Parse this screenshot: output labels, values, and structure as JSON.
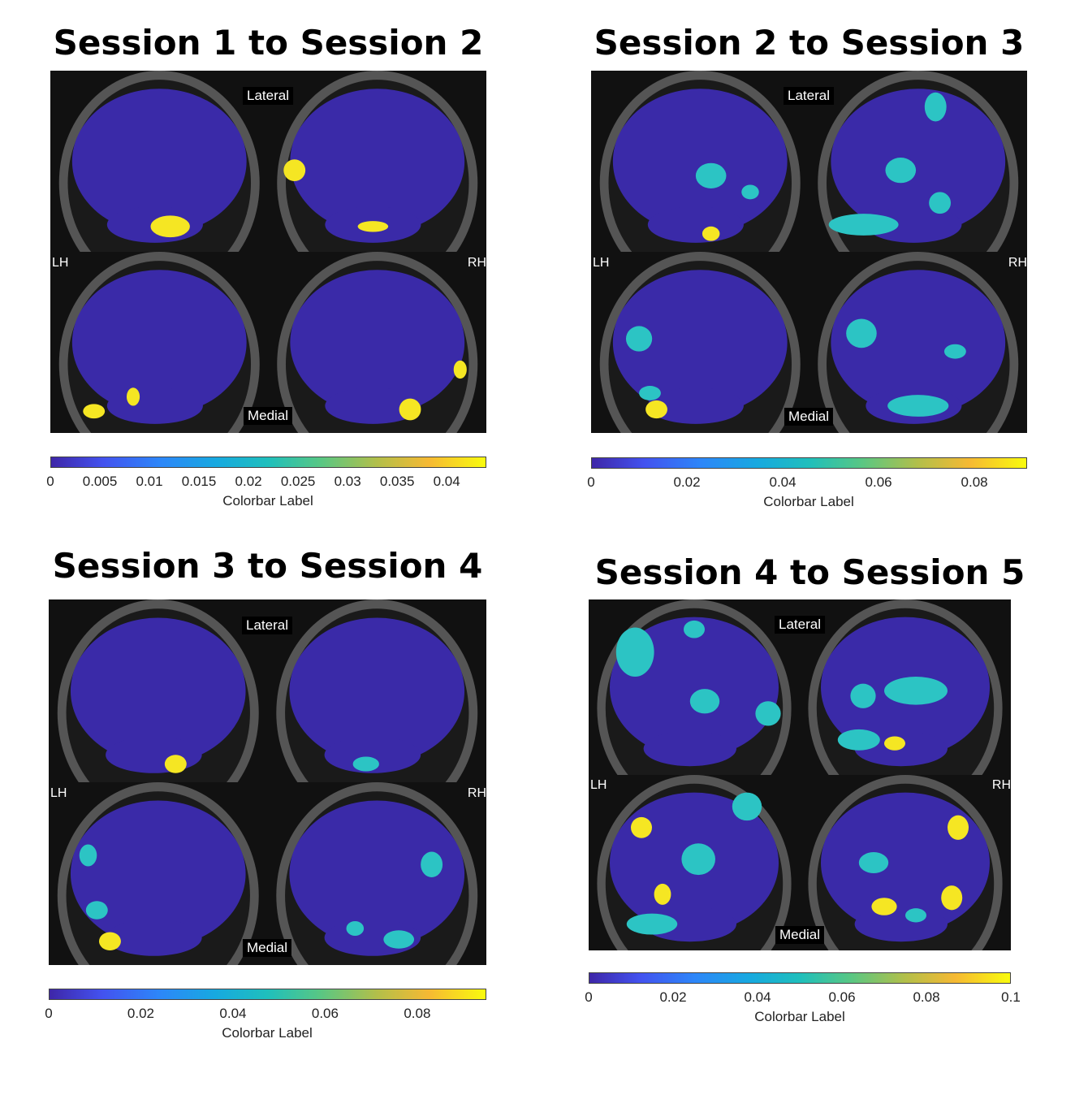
{
  "panels": [
    {
      "title": "Session 1 to Session 2",
      "lateral_label": "Lateral",
      "medial_label": "Medial",
      "lh_label": "LH",
      "rh_label": "RH",
      "colorbar": {
        "label": "Colorbar Label",
        "min": 0,
        "max": 0.044,
        "ticks": [
          "0",
          "0.005",
          "0.01",
          "0.015",
          "0.02",
          "0.025",
          "0.03",
          "0.035",
          "0.04"
        ],
        "tick_values": [
          0,
          0.005,
          0.01,
          0.015,
          0.02,
          0.025,
          0.03,
          0.035,
          0.04
        ]
      }
    },
    {
      "title": "Session 2 to Session 3",
      "lateral_label": "Lateral",
      "medial_label": "Medial",
      "lh_label": "LH",
      "rh_label": "RH",
      "colorbar": {
        "label": "Colorbar Label",
        "min": 0,
        "max": 0.091,
        "ticks": [
          "0",
          "0.02",
          "0.04",
          "0.06",
          "0.08"
        ],
        "tick_values": [
          0,
          0.02,
          0.04,
          0.06,
          0.08
        ]
      }
    },
    {
      "title": "Session 3 to Session 4",
      "lateral_label": "Lateral",
      "medial_label": "Medial",
      "lh_label": "LH",
      "rh_label": "RH",
      "colorbar": {
        "label": "Colorbar Label",
        "min": 0,
        "max": 0.095,
        "ticks": [
          "0",
          "0.02",
          "0.04",
          "0.06",
          "0.08"
        ],
        "tick_values": [
          0,
          0.02,
          0.04,
          0.06,
          0.08
        ]
      }
    },
    {
      "title": "Session 4 to Session 5",
      "lateral_label": "Lateral",
      "medial_label": "Medial",
      "lh_label": "LH",
      "rh_label": "RH",
      "colorbar": {
        "label": "Colorbar Label",
        "min": 0,
        "max": 0.1,
        "ticks": [
          "0",
          "0.02",
          "0.04",
          "0.06",
          "0.08",
          "0.1"
        ],
        "tick_values": [
          0,
          0.02,
          0.04,
          0.06,
          0.08,
          0.1
        ]
      }
    }
  ],
  "colors": {
    "brain_base": "#3a2aa8",
    "highlight_yellow": "#f5e623",
    "highlight_cyan": "#2cc4c4",
    "background": "#000000",
    "skull": "#8a8a8a"
  }
}
